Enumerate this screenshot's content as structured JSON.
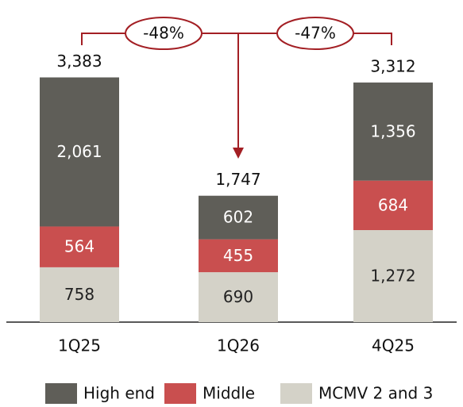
{
  "chart_data": {
    "type": "stacked_bar",
    "categories": [
      "1Q25",
      "1Q26",
      "4Q25"
    ],
    "series": [
      {
        "name": "High end",
        "color": "#5f5e58",
        "values": [
          2061,
          602,
          1356
        ],
        "value_labels": [
          "2,061",
          "602",
          "1,356"
        ]
      },
      {
        "name": "Middle",
        "color": "#c94f4f",
        "values": [
          564,
          455,
          684
        ],
        "value_labels": [
          "564",
          "455",
          "684"
        ]
      },
      {
        "name": "MCMV 2 and 3",
        "color": "#d4d2c8",
        "values": [
          758,
          690,
          1272
        ],
        "value_labels": [
          "758",
          "690",
          "1,272"
        ]
      }
    ],
    "totals": [
      3383,
      1747,
      3312
    ],
    "total_labels": [
      "3,383",
      "1,747",
      "3,312"
    ],
    "annotations": [
      "-48%",
      "-47%"
    ],
    "ylim": [
      0,
      3400
    ],
    "legend": "bottom"
  }
}
